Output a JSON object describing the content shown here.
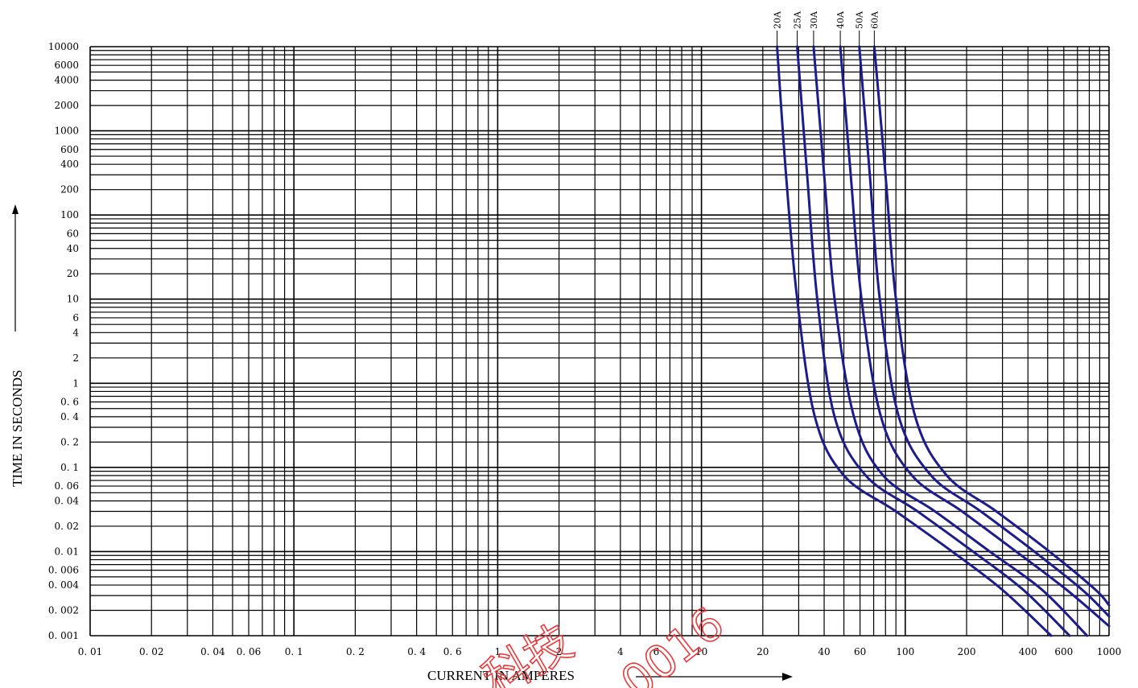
{
  "chart_data": {
    "type": "line",
    "title": "",
    "xlabel": "CURRENT IN AMPERES",
    "ylabel": "TIME IN SECONDS",
    "x_scale": "log",
    "y_scale": "log",
    "xlim": [
      0.01,
      1000
    ],
    "ylim": [
      0.001,
      10000
    ],
    "grid": true,
    "legend": "curve labels at top of each curve",
    "x_tick_labels": [
      {
        "v": 0.01,
        "t": "0. 01"
      },
      {
        "v": 0.02,
        "t": "0. 02"
      },
      {
        "v": 0.04,
        "t": "0. 04"
      },
      {
        "v": 0.06,
        "t": "0. 06"
      },
      {
        "v": 0.1,
        "t": "0. 1"
      },
      {
        "v": 0.2,
        "t": "0. 2"
      },
      {
        "v": 0.4,
        "t": "0. 4"
      },
      {
        "v": 0.6,
        "t": "0. 6"
      },
      {
        "v": 1,
        "t": "1"
      },
      {
        "v": 2,
        "t": "2"
      },
      {
        "v": 4,
        "t": "4"
      },
      {
        "v": 6,
        "t": "6"
      },
      {
        "v": 10,
        "t": "10"
      },
      {
        "v": 20,
        "t": "20"
      },
      {
        "v": 40,
        "t": "40"
      },
      {
        "v": 60,
        "t": "60"
      },
      {
        "v": 100,
        "t": "100"
      },
      {
        "v": 200,
        "t": "200"
      },
      {
        "v": 400,
        "t": "400"
      },
      {
        "v": 600,
        "t": "600"
      },
      {
        "v": 1000,
        "t": "1000"
      }
    ],
    "y_tick_labels": [
      {
        "v": 10000,
        "t": "10000"
      },
      {
        "v": 6000,
        "t": "6000"
      },
      {
        "v": 4000,
        "t": "4000"
      },
      {
        "v": 2000,
        "t": "2000"
      },
      {
        "v": 1000,
        "t": "1000"
      },
      {
        "v": 600,
        "t": "600"
      },
      {
        "v": 400,
        "t": "400"
      },
      {
        "v": 200,
        "t": "200"
      },
      {
        "v": 100,
        "t": "100"
      },
      {
        "v": 60,
        "t": "60"
      },
      {
        "v": 40,
        "t": "40"
      },
      {
        "v": 20,
        "t": "20"
      },
      {
        "v": 10,
        "t": "10"
      },
      {
        "v": 6,
        "t": "6"
      },
      {
        "v": 4,
        "t": "4"
      },
      {
        "v": 2,
        "t": "2"
      },
      {
        "v": 1,
        "t": "1"
      },
      {
        "v": 0.6,
        "t": "0. 6"
      },
      {
        "v": 0.4,
        "t": "0. 4"
      },
      {
        "v": 0.2,
        "t": "0. 2"
      },
      {
        "v": 0.1,
        "t": "0. 1"
      },
      {
        "v": 0.06,
        "t": "0. 06"
      },
      {
        "v": 0.04,
        "t": "0. 04"
      },
      {
        "v": 0.02,
        "t": "0. 02"
      },
      {
        "v": 0.01,
        "t": "0. 01"
      },
      {
        "v": 0.006,
        "t": "0. 006"
      },
      {
        "v": 0.004,
        "t": "0. 004"
      },
      {
        "v": 0.002,
        "t": "0. 002"
      },
      {
        "v": 0.001,
        "t": "0. 001"
      }
    ],
    "curve_color": "#1c1c8c",
    "series": [
      {
        "name": "20A",
        "points": [
          [
            23.5,
            10000
          ],
          [
            26,
            300
          ],
          [
            29.5,
            10
          ],
          [
            36,
            0.4
          ],
          [
            50,
            0.08
          ],
          [
            90,
            0.03
          ],
          [
            170,
            0.01
          ],
          [
            300,
            0.0035
          ],
          [
            520,
            0.001
          ]
        ]
      },
      {
        "name": "25A",
        "points": [
          [
            29.5,
            10000
          ],
          [
            33,
            300
          ],
          [
            37,
            10
          ],
          [
            45,
            0.4
          ],
          [
            64,
            0.08
          ],
          [
            115,
            0.03
          ],
          [
            215,
            0.01
          ],
          [
            380,
            0.0035
          ],
          [
            640,
            0.001
          ]
        ]
      },
      {
        "name": "30A",
        "points": [
          [
            35.5,
            10000
          ],
          [
            40,
            300
          ],
          [
            45,
            10
          ],
          [
            56,
            0.4
          ],
          [
            78,
            0.08
          ],
          [
            140,
            0.03
          ],
          [
            260,
            0.01
          ],
          [
            470,
            0.0035
          ],
          [
            780,
            0.001
          ]
        ]
      },
      {
        "name": "40A",
        "points": [
          [
            48,
            10000
          ],
          [
            54,
            300
          ],
          [
            61,
            10
          ],
          [
            76,
            0.4
          ],
          [
            108,
            0.08
          ],
          [
            190,
            0.03
          ],
          [
            350,
            0.01
          ],
          [
            620,
            0.0035
          ],
          [
            1000,
            0.0013
          ]
        ]
      },
      {
        "name": "50A",
        "points": [
          [
            59.5,
            10000
          ],
          [
            67,
            300
          ],
          [
            75,
            10
          ],
          [
            93,
            0.4
          ],
          [
            134,
            0.08
          ],
          [
            235,
            0.03
          ],
          [
            430,
            0.01
          ],
          [
            740,
            0.0035
          ],
          [
            1000,
            0.0017
          ]
        ]
      },
      {
        "name": "60A",
        "points": [
          [
            70.5,
            10000
          ],
          [
            80,
            300
          ],
          [
            90,
            10
          ],
          [
            112,
            0.4
          ],
          [
            160,
            0.08
          ],
          [
            280,
            0.03
          ],
          [
            510,
            0.01
          ],
          [
            860,
            0.0035
          ],
          [
            1000,
            0.0023
          ]
        ]
      }
    ]
  },
  "watermark": {
    "text": "科技",
    "text2": "0016"
  }
}
